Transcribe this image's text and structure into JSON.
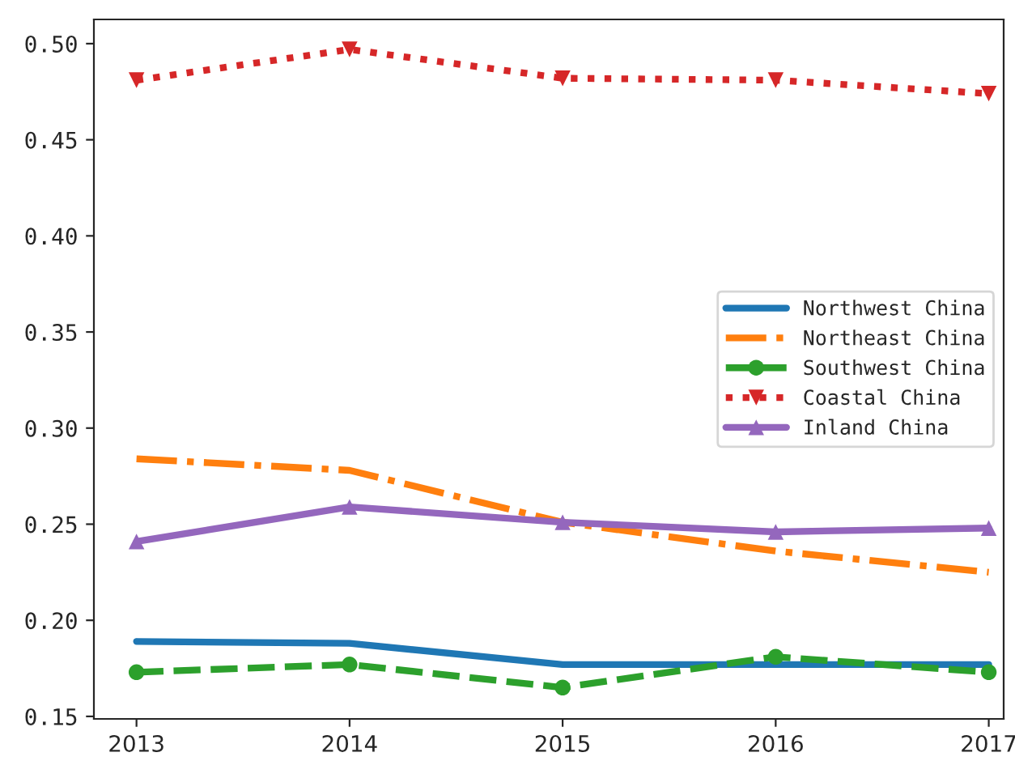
{
  "chart_data": {
    "type": "line",
    "x": [
      2013,
      2014,
      2015,
      2016,
      2017
    ],
    "series": [
      {
        "name": "Northwest China",
        "color": "#1f77b4",
        "marker": "point",
        "line_style": "solid",
        "values": [
          0.189,
          0.188,
          0.177,
          0.177,
          0.177
        ]
      },
      {
        "name": "Northeast China",
        "color": "#ff7f0e",
        "marker": "none",
        "line_style": "dashdot",
        "values": [
          0.284,
          0.278,
          0.251,
          0.236,
          0.225
        ]
      },
      {
        "name": "Southwest China",
        "color": "#2ca02c",
        "marker": "circle",
        "line_style": "dashed",
        "values": [
          0.173,
          0.177,
          0.165,
          0.181,
          0.173
        ]
      },
      {
        "name": "Coastal China",
        "color": "#d62728",
        "marker": "triangle_down",
        "line_style": "dotted",
        "values": [
          0.481,
          0.497,
          0.482,
          0.481,
          0.474
        ]
      },
      {
        "name": "Inland China",
        "color": "#9467bd",
        "marker": "triangle",
        "line_style": "solid",
        "values": [
          0.241,
          0.259,
          0.251,
          0.246,
          0.248
        ]
      }
    ],
    "xlim": [
      2012.8,
      2017.07
    ],
    "xticks": [
      2013,
      2014,
      2015,
      2016,
      2017
    ],
    "ylim": [
      0.1487,
      0.5126
    ],
    "yticks": [
      {
        "value": 0.15,
        "label": "0.15"
      },
      {
        "value": 0.2,
        "label": "0.20"
      },
      {
        "value": 0.25,
        "label": "0.25"
      },
      {
        "value": 0.3,
        "label": "0.30"
      },
      {
        "value": 0.35,
        "label": "0.35"
      },
      {
        "value": 0.4,
        "label": "0.40"
      },
      {
        "value": 0.45,
        "label": "0.45"
      },
      {
        "value": 0.5,
        "label": "0.50"
      }
    ],
    "legend": "right",
    "grid": false
  }
}
